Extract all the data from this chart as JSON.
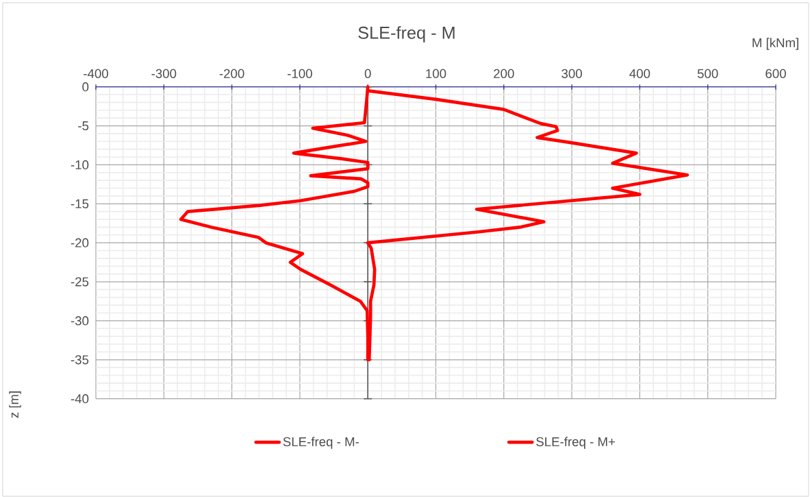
{
  "chart_data": {
    "type": "line",
    "title": "SLE-freq - M",
    "xlabel": "M [kNm]",
    "ylabel": "z [m]",
    "xlim": [
      -400,
      600
    ],
    "xticks": [
      -400,
      -300,
      -200,
      -100,
      0,
      100,
      200,
      300,
      400,
      500,
      600
    ],
    "ylim": [
      -40,
      0
    ],
    "yticks": [
      -40,
      -35,
      -30,
      -25,
      -20,
      -15,
      -10,
      -5,
      0
    ],
    "grid": true,
    "legend": "bottom",
    "marker": "none",
    "line_style": "solid",
    "series": [
      {
        "name": "SLE-freq - M-",
        "color": "#ff0000",
        "x": [
          0,
          -2,
          -5,
          -81,
          -30,
          -3,
          -60,
          -109,
          -40,
          0,
          0,
          -84,
          -10,
          0,
          0,
          -20,
          -99,
          -159,
          -265,
          -275,
          -230,
          -161,
          -150,
          -96,
          -114,
          -99,
          -55,
          -11,
          -1,
          0,
          0
        ],
        "values": [
          0,
          -2,
          -4.6,
          -5.3,
          -6.2,
          -7,
          -7.8,
          -8.5,
          -9.2,
          -9.7,
          -10.5,
          -11.4,
          -11.8,
          -12.3,
          -12.8,
          -13.4,
          -14.6,
          -15.2,
          -16,
          -17,
          -18,
          -19.3,
          -20,
          -21.4,
          -22.5,
          -23.4,
          -25.4,
          -27.5,
          -28.7,
          -32,
          -35
        ]
      },
      {
        "name": "SLE-freq - M+",
        "color": "#ff0000",
        "x": [
          0,
          100,
          200,
          254,
          277,
          279,
          249,
          294,
          395,
          360,
          470,
          360,
          400,
          160,
          259,
          224,
          163,
          0,
          5,
          10,
          9,
          4,
          4,
          2
        ],
        "values": [
          -0.5,
          -1.6,
          -2.9,
          -4.7,
          -5.1,
          -5.6,
          -6.5,
          -7.1,
          -8.5,
          -9.8,
          -11.3,
          -13,
          -13.8,
          -15.7,
          -17.3,
          -18,
          -18.6,
          -20,
          -20.7,
          -23.4,
          -25.4,
          -27.5,
          -29.5,
          -35
        ]
      }
    ]
  }
}
